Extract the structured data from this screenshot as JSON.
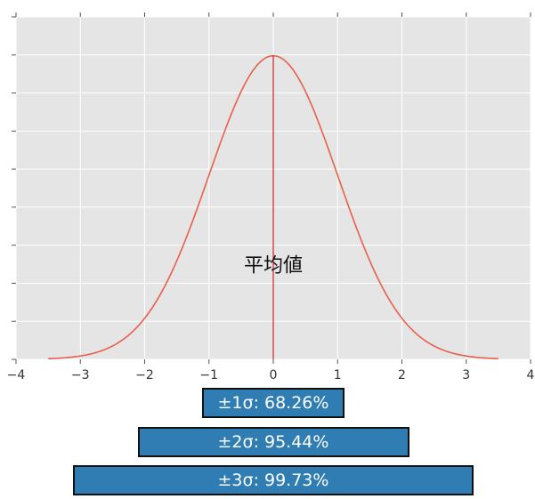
{
  "chart_data": {
    "type": "line",
    "title": "",
    "xlabel": "",
    "ylabel": "",
    "xlim": [
      -4,
      4
    ],
    "ylim": [
      0,
      0.45
    ],
    "x_ticks": [
      -4,
      -3,
      -2,
      -1,
      0,
      1,
      2,
      3,
      4
    ],
    "x_tick_labels": [
      "−4",
      "−3",
      "−2",
      "−1",
      "0",
      "1",
      "2",
      "3",
      "4"
    ],
    "y_ticks_count": 10,
    "y_tick_labels_shown": false,
    "grid": true,
    "background": "#e5e5e5",
    "series": [
      {
        "function": "standard normal pdf",
        "mean": 0,
        "sd": 1,
        "x_range": [
          -3.5,
          3.5
        ],
        "color": "#e8604c"
      }
    ],
    "vertical_line": {
      "x": 0,
      "color": "#cc0000"
    },
    "annotations": [
      {
        "text": "平均値",
        "x": 0,
        "y": 0.115
      }
    ],
    "sigma_bands": [
      {
        "label": "±1σ: 68.26%",
        "from": -1,
        "to": 1
      },
      {
        "label": "±2σ: 95.44%",
        "from": -2,
        "to": 2
      },
      {
        "label": "±3σ: 99.73%",
        "from": -3,
        "to": 3
      }
    ]
  },
  "colors": {
    "plot_bg": "#e5e5e5",
    "grid": "#ffffff",
    "curve": "#e8604c",
    "mean_line": "#cc0000",
    "band_fill": "#2f7db2",
    "band_border": "#111111",
    "band_text": "#ffffff"
  }
}
